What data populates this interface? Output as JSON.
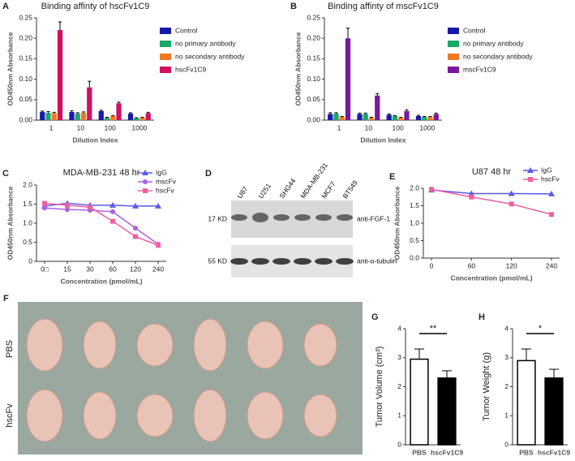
{
  "chart_data": [
    {
      "type": "grouped_bar",
      "panel": "A",
      "title": "Binding affinty of hscFv1C9",
      "y_label": "OD450nm Absorbance",
      "x_label": "Dilution Index",
      "categories": [
        "1",
        "10",
        "100",
        "1000"
      ],
      "series": [
        {
          "name": "Control",
          "color": "#1a1aa8",
          "values": [
            0.02,
            0.02,
            0.022,
            0.016
          ],
          "errors": [
            0.002,
            0.003,
            0.002,
            0.002
          ]
        },
        {
          "name": "no primary antibody",
          "color": "#1aa86a",
          "values": [
            0.018,
            0.016,
            0.006,
            0.005
          ],
          "errors": [
            0.003,
            0.002,
            0.001,
            0.001
          ]
        },
        {
          "name": "no secondary antibody",
          "color": "#f07820",
          "values": [
            0.017,
            0.018,
            0.01,
            0.006
          ],
          "errors": [
            0.002,
            0.002,
            0.001,
            0.001
          ]
        },
        {
          "name": "hscFv1C9",
          "color": "#d01060",
          "values": [
            0.22,
            0.08,
            0.041,
            0.017
          ],
          "errors": [
            0.02,
            0.015,
            0.003,
            0.002
          ]
        }
      ],
      "ylim": [
        0,
        0.25
      ],
      "yticks": [
        {
          "value": 0,
          "label": "0.00"
        },
        {
          "value": 0.05,
          "label": "0.05"
        },
        {
          "value": 0.1,
          "label": "0.10"
        },
        {
          "value": 0.15,
          "label": "0.15"
        },
        {
          "value": 0.2,
          "label": "0.20"
        },
        {
          "value": 0.25,
          "label": "0.25"
        }
      ]
    },
    {
      "type": "grouped_bar",
      "panel": "B",
      "title": "Binding affinty of mscFv1C9",
      "y_label": "OD450nm Absorbance",
      "x_label": "Dilution Index",
      "categories": [
        "1",
        "10",
        "100",
        "1000"
      ],
      "series": [
        {
          "name": "Control",
          "color": "#1a1aa8",
          "values": [
            0.015,
            0.015,
            0.013,
            0.01
          ],
          "errors": [
            0.003,
            0.002,
            0.002,
            0.002
          ]
        },
        {
          "name": "no primary antibody",
          "color": "#1aa86a",
          "values": [
            0.016,
            0.015,
            0.01,
            0.008
          ],
          "errors": [
            0.002,
            0.002,
            0.001,
            0.001
          ]
        },
        {
          "name": "no secondary antibody",
          "color": "#f07820",
          "values": [
            0.008,
            0.006,
            0.006,
            0.008
          ],
          "errors": [
            0.001,
            0.001,
            0.001,
            0.001
          ]
        },
        {
          "name": "mscFv1C9",
          "color": "#7a1a9a",
          "values": [
            0.2,
            0.06,
            0.022,
            0.015
          ],
          "errors": [
            0.025,
            0.005,
            0.003,
            0.002
          ]
        }
      ],
      "ylim": [
        0,
        0.25
      ],
      "yticks": [
        {
          "value": 0,
          "label": "0.00"
        },
        {
          "value": 0.05,
          "label": "0.05"
        },
        {
          "value": 0.1,
          "label": "0.10"
        },
        {
          "value": 0.15,
          "label": "0.15"
        },
        {
          "value": 0.2,
          "label": "0.20"
        },
        {
          "value": 0.25,
          "label": "0.25"
        }
      ]
    },
    {
      "type": "line",
      "panel": "C",
      "title": "MDA-MB-231 48 hr",
      "y_label": "OD450nm Absorbance",
      "x_label": "Concentration (pmol/mL)",
      "categories": [
        "0□",
        "15",
        "30",
        "60",
        "120",
        "240"
      ],
      "series": [
        {
          "name": "IgG",
          "color": "#5a5ae8",
          "marker": "triangle",
          "values": [
            1.45,
            1.52,
            1.47,
            1.47,
            1.45,
            1.45
          ]
        },
        {
          "name": "mscFv",
          "color": "#b060e0",
          "marker": "circle",
          "values": [
            1.4,
            1.36,
            1.34,
            1.3,
            0.87,
            0.45
          ]
        },
        {
          "name": "hscFv",
          "color": "#f060a0",
          "marker": "square",
          "values": [
            1.52,
            1.47,
            1.42,
            1.05,
            0.65,
            0.42
          ]
        }
      ],
      "ylim": [
        0,
        2
      ],
      "yticks": [
        0,
        0.5,
        {
          "value": 1,
          "label": "1.0"
        },
        1.5,
        {
          "value": 2,
          "label": "2.0"
        }
      ]
    },
    {
      "type": "line",
      "panel": "E",
      "title": "U87 48 hr",
      "y_label": "OD450nm Absorbance",
      "x_label": "Concentration (pmol/mL)",
      "categories": [
        "0",
        "60",
        "120",
        "240"
      ],
      "series": [
        {
          "name": "IgG",
          "color": "#5a5ae8",
          "marker": "triangle",
          "values": [
            1.95,
            1.85,
            1.85,
            1.84
          ]
        },
        {
          "name": "hscFv",
          "color": "#f060a0",
          "marker": "square",
          "values": [
            1.97,
            1.75,
            1.55,
            1.25
          ]
        }
      ],
      "ylim": [
        0,
        2
      ],
      "yticks": [
        {
          "value": 0,
          "label": "0.0"
        },
        0.5,
        {
          "value": 1,
          "label": "1.0"
        },
        1.5,
        {
          "value": 2,
          "label": "2.0"
        }
      ]
    },
    {
      "type": "bar",
      "panel": "G",
      "y_label": "Tumor Volume (cm³)",
      "annotation": "**",
      "categories": [
        "PBS",
        "hscFv1C9"
      ],
      "values": [
        2.95,
        2.3
      ],
      "errors": [
        0.35,
        0.25
      ],
      "colors": [
        "#ffffff",
        "#000000"
      ],
      "ylim": [
        0,
        4
      ],
      "yticks": [
        0,
        1,
        2,
        3,
        4
      ]
    },
    {
      "type": "bar",
      "panel": "H",
      "y_label": "Tumor Weight (g)",
      "annotation": "*",
      "categories": [
        "PBS",
        "hscFv1C9"
      ],
      "values": [
        2.9,
        2.3
      ],
      "errors": [
        0.4,
        0.3
      ],
      "colors": [
        "#ffffff",
        "#000000"
      ],
      "ylim": [
        0,
        4
      ],
      "yticks": [
        0,
        1,
        2,
        3,
        4
      ]
    }
  ],
  "blot": {
    "panel": "D",
    "lanes": [
      "U87",
      "U251",
      "SHG44",
      "MDA-MB-231",
      "MCF7",
      "BT549"
    ],
    "rows": [
      {
        "size": "17 KD",
        "antibody": "anti-FGF-1"
      },
      {
        "size": "55 KD",
        "antibody": "anti-α-tubulin"
      }
    ]
  },
  "photo": {
    "panel": "F",
    "rows": [
      "PBS",
      "hscFv"
    ]
  }
}
